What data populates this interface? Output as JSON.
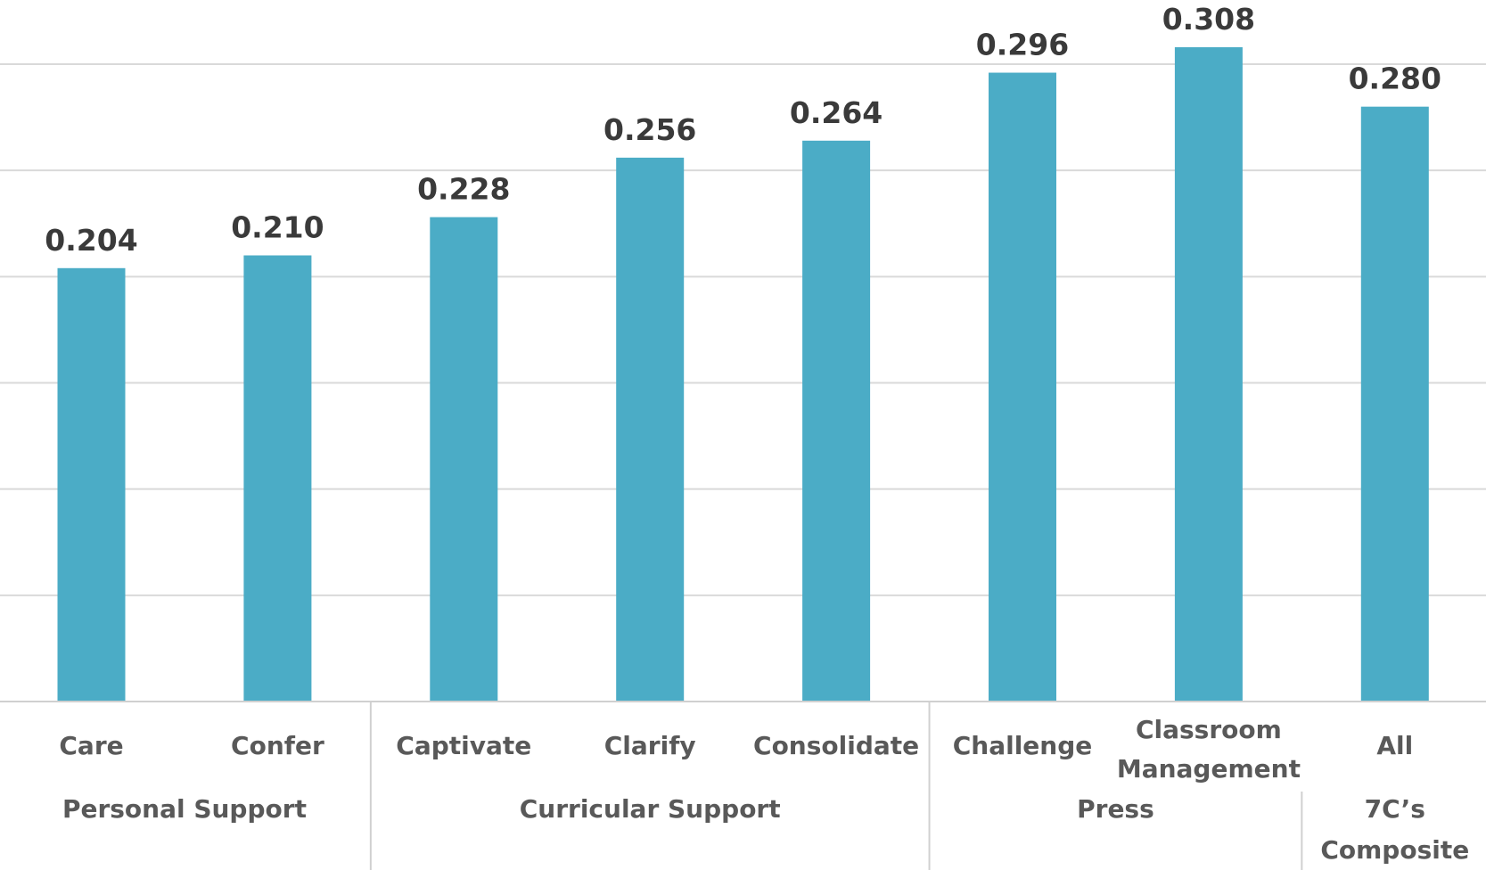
{
  "chart_data": {
    "type": "bar",
    "title": "",
    "xlabel": "",
    "ylabel": "",
    "ylim": [
      0,
      0.3
    ],
    "grid": true,
    "bar_color": "#4BACC6",
    "categories": [
      {
        "label": [
          "Care"
        ],
        "value": 0.204,
        "value_label": "0.204"
      },
      {
        "label": [
          "Confer"
        ],
        "value": 0.21,
        "value_label": "0.210"
      },
      {
        "label": [
          "Captivate"
        ],
        "value": 0.228,
        "value_label": "0.228"
      },
      {
        "label": [
          "Clarify"
        ],
        "value": 0.256,
        "value_label": "0.256"
      },
      {
        "label": [
          "Consolidate"
        ],
        "value": 0.264,
        "value_label": "0.264"
      },
      {
        "label": [
          "Challenge"
        ],
        "value": 0.296,
        "value_label": "0.296"
      },
      {
        "label": [
          "Classroom",
          "Management"
        ],
        "value": 0.308,
        "value_label": "0.308"
      },
      {
        "label": [
          "All"
        ],
        "value": 0.28,
        "value_label": "0.280"
      }
    ],
    "groups": [
      {
        "label": [
          "Personal Support"
        ],
        "start": 0,
        "end": 1
      },
      {
        "label": [
          "Curricular Support"
        ],
        "start": 2,
        "end": 4
      },
      {
        "label": [
          "Press"
        ],
        "start": 5,
        "end": 6
      },
      {
        "label": [
          "7C’s",
          "Composite"
        ],
        "start": 7,
        "end": 7
      }
    ]
  }
}
